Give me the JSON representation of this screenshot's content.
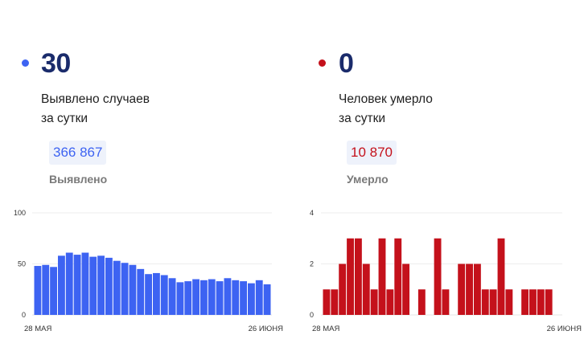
{
  "cases": {
    "color": "#3d63f2",
    "number": "30",
    "desc_line1": "Выявлено случаев",
    "desc_line2": "за сутки",
    "total": "366 867",
    "total_label": "Выявлено"
  },
  "deaths": {
    "color": "#c4111b",
    "number": "0",
    "desc_line1": "Человек умерло",
    "desc_line2": "за сутки",
    "total": "10 870",
    "total_label": "Умерло"
  },
  "chart_data": [
    {
      "type": "bar",
      "yticks": [
        "0",
        "50",
        "100"
      ],
      "ylim": [
        0,
        100
      ],
      "xlabels": [
        "28 МАЯ",
        "26 ИЮНЯ"
      ],
      "color": "#3d63f2",
      "values": [
        48,
        49,
        47,
        58,
        61,
        59,
        61,
        57,
        58,
        56,
        53,
        51,
        49,
        45,
        40,
        41,
        39,
        36,
        32,
        33,
        35,
        34,
        35,
        33,
        36,
        34,
        33,
        31,
        34,
        30
      ]
    },
    {
      "type": "bar",
      "yticks": [
        "0",
        "2",
        "4"
      ],
      "ylim": [
        0,
        4
      ],
      "xlabels": [
        "28 МАЯ",
        "26 ИЮНЯ"
      ],
      "color": "#c4111b",
      "values": [
        1,
        1,
        2,
        3,
        3,
        2,
        1,
        3,
        1,
        3,
        2,
        0,
        1,
        0,
        3,
        1,
        0,
        2,
        2,
        2,
        1,
        1,
        3,
        1,
        0,
        1,
        1,
        1,
        1,
        0
      ]
    }
  ]
}
